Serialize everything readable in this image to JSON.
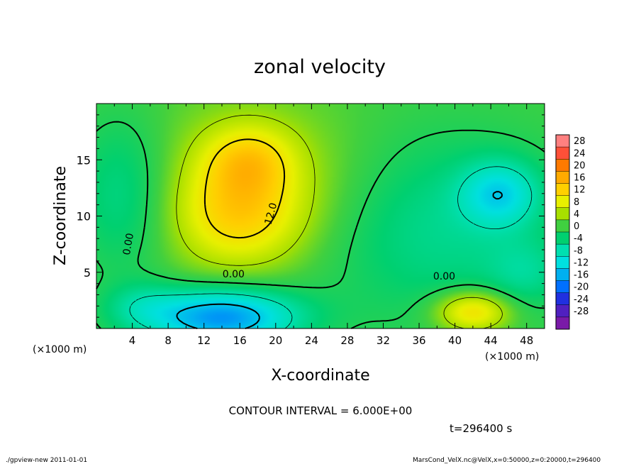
{
  "chart_data": {
    "type": "heatmap",
    "title": "zonal velocity",
    "xlabel": "X-coordinate",
    "ylabel": "Z-coordinate",
    "x_unit_left": "(×1000 m)",
    "x_unit_right": "(×1000 m)",
    "xlim": [
      0,
      50
    ],
    "ylim": [
      0,
      20
    ],
    "x_ticks": [
      "4",
      "8",
      "12",
      "16",
      "20",
      "24",
      "28",
      "32",
      "36",
      "40",
      "44",
      "48"
    ],
    "x_tick_values": [
      4,
      8,
      12,
      16,
      20,
      24,
      28,
      32,
      36,
      40,
      44,
      48
    ],
    "y_ticks": [
      "5",
      "10",
      "15"
    ],
    "y_tick_values": [
      5,
      10,
      15
    ],
    "contour_labels": [
      {
        "text": "0.00",
        "x": 3.6,
        "z": 7.5,
        "angle": -80
      },
      {
        "text": "12.0",
        "x": 19.5,
        "z": 10.2,
        "angle": -75
      },
      {
        "text": "0.00",
        "x": 15.3,
        "z": 4.8,
        "angle": 0
      },
      {
        "text": "0.00",
        "x": 38.8,
        "z": 4.6,
        "angle": 0
      }
    ],
    "contour_interval_text": "CONTOUR INTERVAL = 6.000E+00",
    "time_text": "t=296400 s",
    "colorbar": {
      "labels": [
        "28",
        "24",
        "20",
        "16",
        "12",
        "8",
        "4",
        "0",
        "-4",
        "-8",
        "-12",
        "-16",
        "-20",
        "-24",
        "-28"
      ],
      "colors": [
        "#ff8080",
        "#ff5038",
        "#ff7a00",
        "#ffaa00",
        "#ffd000",
        "#e8f000",
        "#a8e000",
        "#40d040",
        "#00d070",
        "#00e0b0",
        "#00e0e0",
        "#00b0f0",
        "#0070ff",
        "#2030e0",
        "#5020c0",
        "#7a1aa8"
      ]
    },
    "blobs": [
      {
        "x": 16,
        "z": 10,
        "sx": 5,
        "sz": 3.2,
        "v": 9
      },
      {
        "x": 17,
        "z": 15,
        "sx": 3.5,
        "sz": 2.2,
        "v": 8
      },
      {
        "x": 18,
        "z": 13,
        "sx": 9,
        "sz": 5,
        "v": 5
      },
      {
        "x": 14,
        "z": 1,
        "sx": 6,
        "sz": 1.8,
        "v": -18
      },
      {
        "x": 45,
        "z": 12,
        "sx": 3,
        "sz": 2,
        "v": -10
      },
      {
        "x": 42,
        "z": 1.5,
        "sx": 3,
        "sz": 1.3,
        "v": 12
      },
      {
        "x": 3,
        "z": 12,
        "sx": 4,
        "sz": 5,
        "v": -6
      },
      {
        "x": 38,
        "z": 9,
        "sx": 10,
        "sz": 6,
        "v": -6
      },
      {
        "x": 5,
        "z": 2,
        "sx": 3,
        "sz": 1.5,
        "v": -4
      },
      {
        "x": 48,
        "z": 5,
        "sx": 3,
        "sz": 2,
        "v": -4
      }
    ],
    "base_value": 2
  },
  "footer": {
    "left": "./gpview-new   2011-01-01",
    "right": "MarsCond_VelX.nc@VelX,x=0:50000,z=0:20000,t=296400"
  }
}
